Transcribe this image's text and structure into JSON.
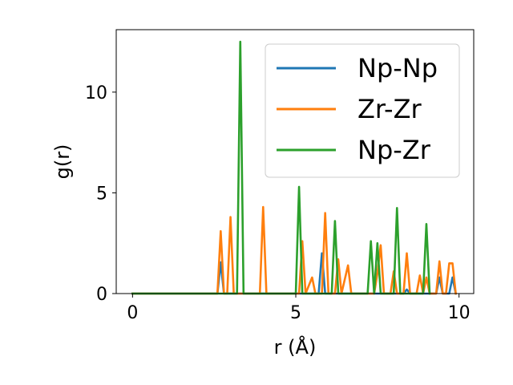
{
  "chart_data": {
    "type": "line",
    "title": "",
    "xlabel": "r (Å)",
    "ylabel": "g(r)",
    "xlim": [
      -0.5,
      10.45
    ],
    "ylim": [
      0,
      13.1
    ],
    "xticks": [
      0,
      5,
      10
    ],
    "yticks": [
      0,
      5,
      10
    ],
    "grid": false,
    "legend_position": "top-right",
    "series": [
      {
        "name": "Np-Np",
        "color": "#1f77b4",
        "points": [
          [
            0,
            0
          ],
          [
            2.6,
            0
          ],
          [
            2.7,
            1.55
          ],
          [
            2.8,
            0
          ],
          [
            5.7,
            0
          ],
          [
            5.8,
            2.0
          ],
          [
            5.9,
            0
          ],
          [
            8.3,
            0
          ],
          [
            8.4,
            0.2
          ],
          [
            8.5,
            0
          ],
          [
            9.3,
            0
          ],
          [
            9.4,
            0.8
          ],
          [
            9.5,
            0
          ],
          [
            9.7,
            0
          ],
          [
            9.8,
            0.8
          ],
          [
            9.9,
            0
          ]
        ]
      },
      {
        "name": "Zr-Zr",
        "color": "#ff7f0e",
        "points": [
          [
            0,
            0
          ],
          [
            2.6,
            0
          ],
          [
            2.7,
            3.1
          ],
          [
            2.8,
            0
          ],
          [
            2.9,
            0
          ],
          [
            3.0,
            3.8
          ],
          [
            3.1,
            0
          ],
          [
            3.9,
            0
          ],
          [
            4.0,
            4.3
          ],
          [
            4.1,
            0
          ],
          [
            5.1,
            0
          ],
          [
            5.2,
            2.6
          ],
          [
            5.3,
            0
          ],
          [
            5.5,
            0.8
          ],
          [
            5.6,
            0
          ],
          [
            5.8,
            0
          ],
          [
            5.9,
            4.0
          ],
          [
            6.0,
            0
          ],
          [
            6.2,
            0
          ],
          [
            6.3,
            1.7
          ],
          [
            6.4,
            0
          ],
          [
            6.6,
            1.4
          ],
          [
            6.7,
            0
          ],
          [
            7.4,
            0
          ],
          [
            7.5,
            1.0
          ],
          [
            7.6,
            2.4
          ],
          [
            7.7,
            0
          ],
          [
            7.9,
            0
          ],
          [
            8.0,
            1.1
          ],
          [
            8.1,
            0
          ],
          [
            8.3,
            0
          ],
          [
            8.4,
            2.0
          ],
          [
            8.5,
            0
          ],
          [
            8.7,
            0
          ],
          [
            8.8,
            0.9
          ],
          [
            8.9,
            0
          ],
          [
            9.0,
            0.8
          ],
          [
            9.1,
            0
          ],
          [
            9.3,
            0
          ],
          [
            9.4,
            1.6
          ],
          [
            9.5,
            0
          ],
          [
            9.6,
            0
          ],
          [
            9.7,
            1.5
          ],
          [
            9.8,
            1.5
          ],
          [
            9.9,
            0
          ]
        ]
      },
      {
        "name": "Np-Zr",
        "color": "#2ca02c",
        "points": [
          [
            0,
            0
          ],
          [
            3.2,
            0
          ],
          [
            3.3,
            12.5
          ],
          [
            3.4,
            0
          ],
          [
            5.0,
            0
          ],
          [
            5.1,
            5.3
          ],
          [
            5.2,
            0
          ],
          [
            6.1,
            0
          ],
          [
            6.2,
            3.6
          ],
          [
            6.3,
            0
          ],
          [
            7.2,
            0
          ],
          [
            7.3,
            2.6
          ],
          [
            7.4,
            0
          ],
          [
            7.5,
            2.5
          ],
          [
            7.6,
            0
          ],
          [
            8.0,
            0
          ],
          [
            8.1,
            4.25
          ],
          [
            8.2,
            0
          ],
          [
            8.9,
            0
          ],
          [
            9.0,
            3.45
          ],
          [
            9.1,
            0
          ]
        ]
      }
    ]
  }
}
